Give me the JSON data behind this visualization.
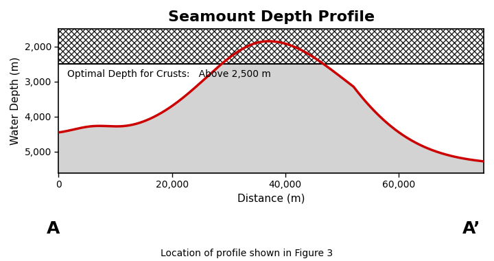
{
  "title": "Seamount Depth Profile",
  "xlabel": "Distance (m)",
  "ylabel": "Water Depth (m)",
  "footer": "Location of profile shown in Figure 3",
  "label_A": "A",
  "label_A_prime": "A’",
  "annotation": "Optimal Depth for Crusts:   Above 2,500 m",
  "xlim": [
    0,
    75000
  ],
  "ylim": [
    5600,
    1500
  ],
  "optimal_depth": 2500,
  "hatch_top": 1500,
  "profile_color": "#cc0000",
  "profile_linewidth": 2.5,
  "hatch_color": "#222222",
  "fill_color": "#d3d3d3",
  "background_color": "#ffffff",
  "x_ticks": [
    0,
    20000,
    40000,
    60000
  ],
  "y_ticks": [
    2000,
    3000,
    4000,
    5000
  ],
  "title_fontsize": 16,
  "annotation_fontsize": 10
}
